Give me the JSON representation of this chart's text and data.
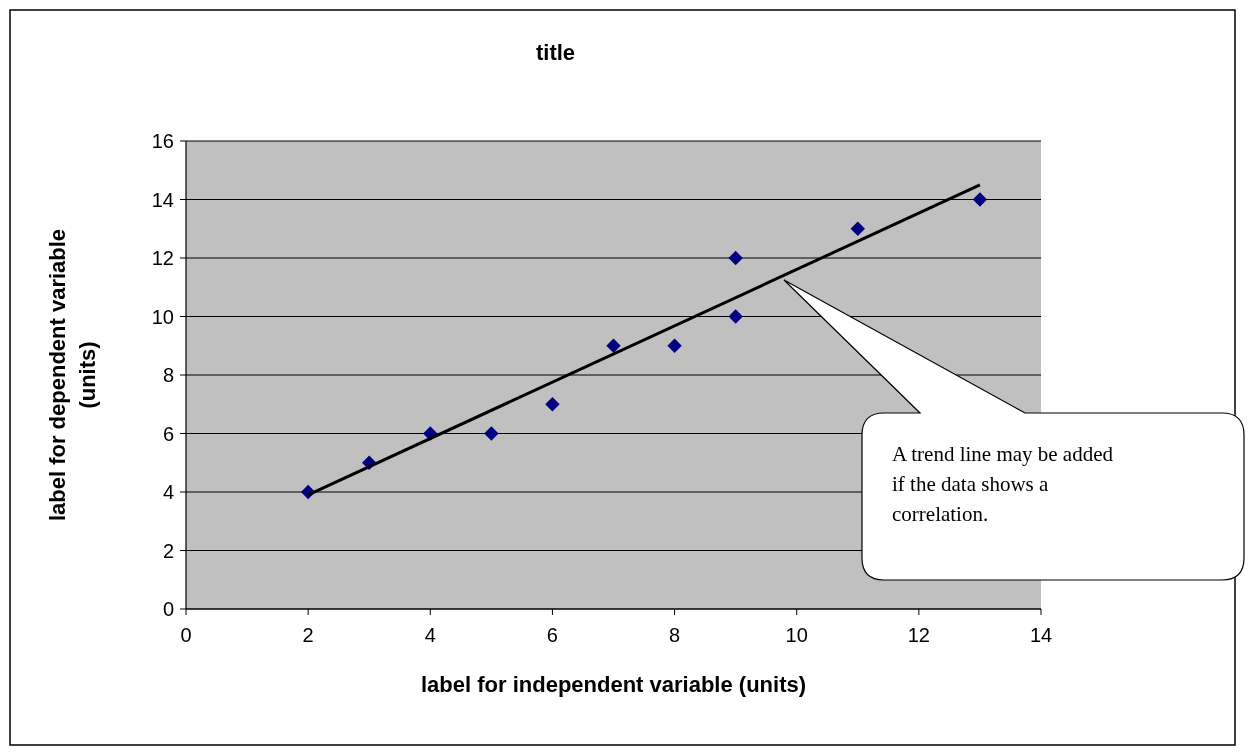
{
  "chart_data": {
    "type": "scatter",
    "title": "title",
    "xlabel": "label for independent variable (units)",
    "ylabel": "label for dependent variable (units)",
    "xlim": [
      0,
      14
    ],
    "xticks": [
      0,
      2,
      4,
      6,
      8,
      10,
      12,
      14
    ],
    "ylim": [
      0,
      16
    ],
    "yticks": [
      0,
      2,
      4,
      6,
      8,
      10,
      12,
      14,
      16
    ],
    "grid": "y",
    "marker": "diamond",
    "series": [
      {
        "color": "#000080",
        "x": [
          2,
          3,
          4,
          5,
          6,
          7,
          8,
          9,
          9,
          11,
          13
        ],
        "values": [
          4,
          5,
          6,
          6,
          7,
          9,
          9,
          12,
          10,
          13,
          14
        ]
      },
      {
        "type": "line",
        "color": "#000000",
        "marker": "none",
        "x": [
          2,
          13
        ],
        "values": [
          3.9,
          14.5
        ]
      }
    ],
    "annotations": [
      "A trend line may be added if the data shows a correlation."
    ]
  }
}
